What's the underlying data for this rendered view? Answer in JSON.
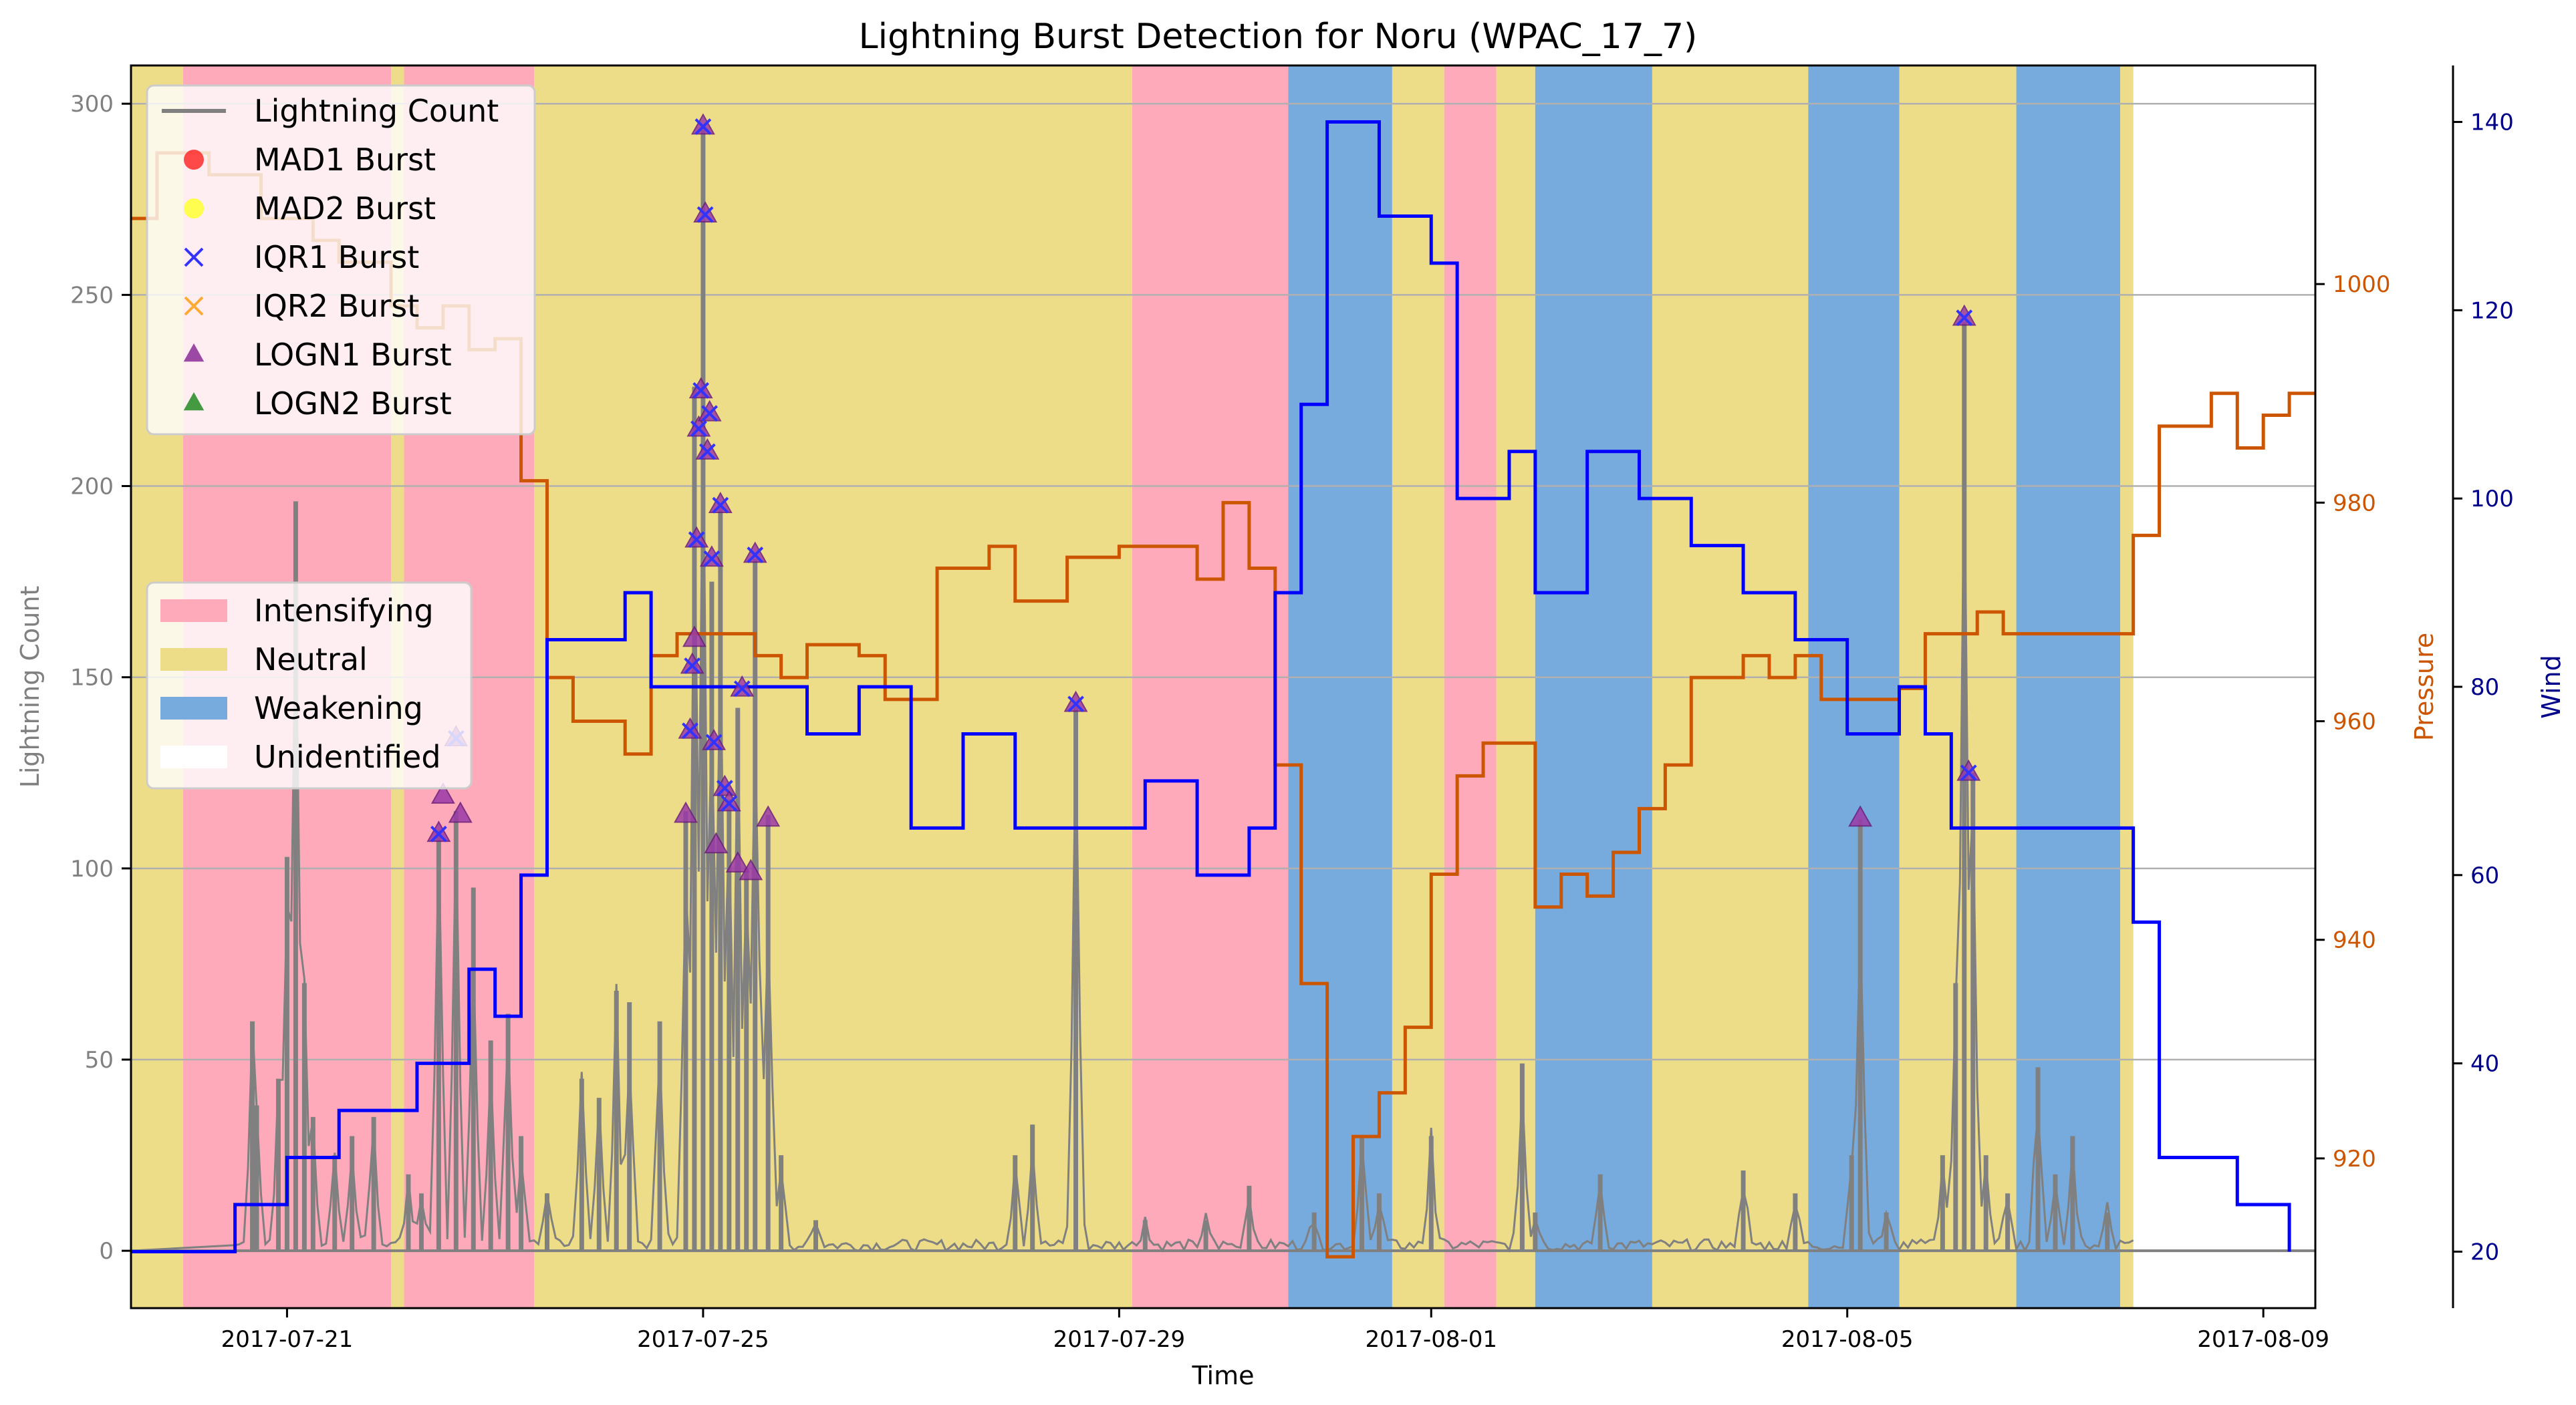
{
  "chart_data": {
    "type": "line",
    "title": "Lightning Burst Detection for Noru (WPAC_17_7)",
    "xlabel": "Time",
    "x_start": "2017-07-19T12:00",
    "x_end": "2017-08-09T12:00",
    "x_ticks": [
      "2017-07-21",
      "2017-07-25",
      "2017-07-29",
      "2017-08-01",
      "2017-08-05",
      "2017-08-09"
    ],
    "axes": {
      "lightning": {
        "label": "Lightning Count",
        "ylim": [
          -15,
          310
        ],
        "ticks": [
          0,
          50,
          100,
          150,
          200,
          250,
          300
        ],
        "color": "#808080"
      },
      "pressure": {
        "label": "Pressure",
        "ylim": [
          906.3,
          1020
        ],
        "ticks": [
          920,
          940,
          960,
          980,
          1000
        ],
        "color": "#cc5500"
      },
      "wind": {
        "label": "Wind",
        "ylim": [
          14,
          146
        ],
        "ticks": [
          20,
          40,
          60,
          80,
          100,
          120,
          140
        ],
        "color": "#00008b"
      }
    },
    "grid": true,
    "legend_main": {
      "placement": "upper-left",
      "entries": [
        {
          "label": "Lightning Count",
          "marker": "line",
          "color": "#808080"
        },
        {
          "label": "MAD1 Burst",
          "marker": "circle",
          "color": "#ff2a2a"
        },
        {
          "label": "MAD2 Burst",
          "marker": "circle",
          "color": "#ffff33"
        },
        {
          "label": "IQR1 Burst",
          "marker": "x",
          "color": "#3333ff"
        },
        {
          "label": "IQR2 Burst",
          "marker": "x",
          "color": "#ffaa33"
        },
        {
          "label": "LOGN1 Burst",
          "marker": "triangle",
          "color": "#8b2c98"
        },
        {
          "label": "LOGN2 Burst",
          "marker": "triangle",
          "color": "#228b22"
        }
      ]
    },
    "legend_phase": {
      "placement": "center-left",
      "entries": [
        {
          "label": "Intensifying",
          "color": "#ffaabb"
        },
        {
          "label": "Neutral",
          "color": "#eedd88"
        },
        {
          "label": "Weakening",
          "color": "#77aadd"
        },
        {
          "label": "Unidentified",
          "color": "#ffffff"
        }
      ]
    },
    "phases": [
      {
        "start": "2017-07-19T12:00",
        "end": "2017-07-20T00:00",
        "phase": "Neutral"
      },
      {
        "start": "2017-07-20T00:00",
        "end": "2017-07-22T00:00",
        "phase": "Intensifying"
      },
      {
        "start": "2017-07-22T00:00",
        "end": "2017-07-22T03:00",
        "phase": "Neutral"
      },
      {
        "start": "2017-07-22T03:00",
        "end": "2017-07-23T09:00",
        "phase": "Intensifying"
      },
      {
        "start": "2017-07-23T09:00",
        "end": "2017-07-29T03:00",
        "phase": "Neutral"
      },
      {
        "start": "2017-07-29T03:00",
        "end": "2017-07-30T15:00",
        "phase": "Intensifying"
      },
      {
        "start": "2017-07-30T15:00",
        "end": "2017-07-31T15:00",
        "phase": "Weakening"
      },
      {
        "start": "2017-07-31T15:00",
        "end": "2017-08-01T03:00",
        "phase": "Neutral"
      },
      {
        "start": "2017-08-01T03:00",
        "end": "2017-08-01T15:00",
        "phase": "Intensifying"
      },
      {
        "start": "2017-08-01T15:00",
        "end": "2017-08-02T00:00",
        "phase": "Neutral"
      },
      {
        "start": "2017-08-02T00:00",
        "end": "2017-08-03T03:00",
        "phase": "Weakening"
      },
      {
        "start": "2017-08-03T03:00",
        "end": "2017-08-04T15:00",
        "phase": "Neutral"
      },
      {
        "start": "2017-08-04T15:00",
        "end": "2017-08-05T12:00",
        "phase": "Weakening"
      },
      {
        "start": "2017-08-05T12:00",
        "end": "2017-08-06T15:00",
        "phase": "Neutral"
      },
      {
        "start": "2017-08-06T15:00",
        "end": "2017-08-07T15:00",
        "phase": "Weakening"
      },
      {
        "start": "2017-08-07T15:00",
        "end": "2017-08-07T18:00",
        "phase": "Neutral"
      }
    ],
    "lightning_peaks": [
      {
        "x": "2017-07-20T16:00",
        "y": 60
      },
      {
        "x": "2017-07-20T17:00",
        "y": 38
      },
      {
        "x": "2017-07-20T22:00",
        "y": 45
      },
      {
        "x": "2017-07-21T00:00",
        "y": 103
      },
      {
        "x": "2017-07-21T02:00",
        "y": 196
      },
      {
        "x": "2017-07-21T04:00",
        "y": 70
      },
      {
        "x": "2017-07-21T06:00",
        "y": 35
      },
      {
        "x": "2017-07-21T11:00",
        "y": 25
      },
      {
        "x": "2017-07-21T15:00",
        "y": 30
      },
      {
        "x": "2017-07-21T20:00",
        "y": 35
      },
      {
        "x": "2017-07-22T04:00",
        "y": 20
      },
      {
        "x": "2017-07-22T07:00",
        "y": 15
      },
      {
        "x": "2017-07-22T11:00",
        "y": 110
      },
      {
        "x": "2017-07-22T15:00",
        "y": 115
      },
      {
        "x": "2017-07-22T19:00",
        "y": 95
      },
      {
        "x": "2017-07-22T23:00",
        "y": 55
      },
      {
        "x": "2017-07-23T03:00",
        "y": 62
      },
      {
        "x": "2017-07-23T06:00",
        "y": 30
      },
      {
        "x": "2017-07-23T12:00",
        "y": 15
      },
      {
        "x": "2017-07-23T20:00",
        "y": 45
      },
      {
        "x": "2017-07-24T00:00",
        "y": 40
      },
      {
        "x": "2017-07-24T04:00",
        "y": 68
      },
      {
        "x": "2017-07-24T07:00",
        "y": 65
      },
      {
        "x": "2017-07-24T14:00",
        "y": 60
      },
      {
        "x": "2017-07-24T20:00",
        "y": 115
      },
      {
        "x": "2017-07-24T22:00",
        "y": 226
      },
      {
        "x": "2017-07-25T00:00",
        "y": 294
      },
      {
        "x": "2017-07-25T02:00",
        "y": 175
      },
      {
        "x": "2017-07-25T04:00",
        "y": 195
      },
      {
        "x": "2017-07-25T06:00",
        "y": 118
      },
      {
        "x": "2017-07-25T08:00",
        "y": 142
      },
      {
        "x": "2017-07-25T10:00",
        "y": 100
      },
      {
        "x": "2017-07-25T12:00",
        "y": 181
      },
      {
        "x": "2017-07-25T15:00",
        "y": 114
      },
      {
        "x": "2017-07-25T18:00",
        "y": 25
      },
      {
        "x": "2017-07-26T02:00",
        "y": 8
      },
      {
        "x": "2017-07-28T00:00",
        "y": 25
      },
      {
        "x": "2017-07-28T04:00",
        "y": 33
      },
      {
        "x": "2017-07-28T14:00",
        "y": 143
      },
      {
        "x": "2017-07-29T06:00",
        "y": 8
      },
      {
        "x": "2017-07-29T20:00",
        "y": 8
      },
      {
        "x": "2017-07-30T06:00",
        "y": 17
      },
      {
        "x": "2017-07-30T21:00",
        "y": 10
      },
      {
        "x": "2017-07-31T08:00",
        "y": 30
      },
      {
        "x": "2017-07-31T12:00",
        "y": 15
      },
      {
        "x": "2017-08-01T00:00",
        "y": 30
      },
      {
        "x": "2017-08-01T21:00",
        "y": 49
      },
      {
        "x": "2017-08-02T00:00",
        "y": 10
      },
      {
        "x": "2017-08-02T15:00",
        "y": 20
      },
      {
        "x": "2017-08-04T00:00",
        "y": 21
      },
      {
        "x": "2017-08-04T12:00",
        "y": 15
      },
      {
        "x": "2017-08-05T01:00",
        "y": 25
      },
      {
        "x": "2017-08-05T03:00",
        "y": 113
      },
      {
        "x": "2017-08-05T09:00",
        "y": 10
      },
      {
        "x": "2017-08-05T22:00",
        "y": 25
      },
      {
        "x": "2017-08-06T01:00",
        "y": 70
      },
      {
        "x": "2017-08-06T03:00",
        "y": 243
      },
      {
        "x": "2017-08-06T05:00",
        "y": 125
      },
      {
        "x": "2017-08-06T08:00",
        "y": 25
      },
      {
        "x": "2017-08-06T13:00",
        "y": 15
      },
      {
        "x": "2017-08-06T20:00",
        "y": 48
      },
      {
        "x": "2017-08-07T00:00",
        "y": 20
      },
      {
        "x": "2017-08-07T04:00",
        "y": 30
      },
      {
        "x": "2017-08-07T12:00",
        "y": 10
      }
    ],
    "bursts": [
      {
        "x": "2017-07-22T11:00",
        "y": 109,
        "types": [
          "LOGN1",
          "IQR1"
        ]
      },
      {
        "x": "2017-07-22T12:00",
        "y": 119,
        "types": [
          "LOGN1"
        ]
      },
      {
        "x": "2017-07-22T15:00",
        "y": 134,
        "types": [
          "LOGN1",
          "IQR1"
        ]
      },
      {
        "x": "2017-07-22T16:00",
        "y": 114,
        "types": [
          "LOGN1"
        ]
      },
      {
        "x": "2017-07-24T20:00",
        "y": 114,
        "types": [
          "LOGN1"
        ]
      },
      {
        "x": "2017-07-24T21:00",
        "y": 136,
        "types": [
          "LOGN1",
          "IQR1"
        ]
      },
      {
        "x": "2017-07-24T21:30",
        "y": 153,
        "types": [
          "LOGN1",
          "IQR1"
        ]
      },
      {
        "x": "2017-07-24T22:00",
        "y": 160,
        "types": [
          "LOGN1"
        ]
      },
      {
        "x": "2017-07-24T22:30",
        "y": 186,
        "types": [
          "LOGN1",
          "IQR1"
        ]
      },
      {
        "x": "2017-07-24T23:00",
        "y": 215,
        "types": [
          "LOGN1",
          "IQR1"
        ]
      },
      {
        "x": "2017-07-24T23:30",
        "y": 225,
        "types": [
          "LOGN1",
          "IQR1"
        ]
      },
      {
        "x": "2017-07-25T00:00",
        "y": 294,
        "types": [
          "LOGN1",
          "IQR1"
        ]
      },
      {
        "x": "2017-07-25T00:30",
        "y": 271,
        "types": [
          "LOGN1",
          "IQR1"
        ]
      },
      {
        "x": "2017-07-25T01:00",
        "y": 209,
        "types": [
          "LOGN1",
          "IQR1"
        ]
      },
      {
        "x": "2017-07-25T01:30",
        "y": 219,
        "types": [
          "LOGN1",
          "IQR1"
        ]
      },
      {
        "x": "2017-07-25T02:00",
        "y": 181,
        "types": [
          "LOGN1",
          "IQR1"
        ]
      },
      {
        "x": "2017-07-25T02:30",
        "y": 133,
        "types": [
          "LOGN1",
          "IQR1"
        ]
      },
      {
        "x": "2017-07-25T03:00",
        "y": 106,
        "types": [
          "LOGN1"
        ]
      },
      {
        "x": "2017-07-25T04:00",
        "y": 195,
        "types": [
          "LOGN1",
          "IQR1"
        ]
      },
      {
        "x": "2017-07-25T05:00",
        "y": 121,
        "types": [
          "LOGN1",
          "IQR1"
        ]
      },
      {
        "x": "2017-07-25T06:00",
        "y": 117,
        "types": [
          "LOGN1",
          "IQR1"
        ]
      },
      {
        "x": "2017-07-25T08:00",
        "y": 101,
        "types": [
          "LOGN1"
        ]
      },
      {
        "x": "2017-07-25T09:00",
        "y": 147,
        "types": [
          "LOGN1",
          "IQR1"
        ]
      },
      {
        "x": "2017-07-25T11:00",
        "y": 99,
        "types": [
          "LOGN1"
        ]
      },
      {
        "x": "2017-07-25T12:00",
        "y": 182,
        "types": [
          "LOGN1",
          "IQR1"
        ]
      },
      {
        "x": "2017-07-25T15:00",
        "y": 113,
        "types": [
          "LOGN1"
        ]
      },
      {
        "x": "2017-07-28T14:00",
        "y": 143,
        "types": [
          "LOGN1",
          "IQR1"
        ]
      },
      {
        "x": "2017-08-05T03:00",
        "y": 113,
        "types": [
          "LOGN1"
        ]
      },
      {
        "x": "2017-08-06T03:00",
        "y": 244,
        "types": [
          "LOGN1",
          "IQR1"
        ]
      },
      {
        "x": "2017-08-06T04:00",
        "y": 125,
        "types": [
          "LOGN1",
          "IQR1"
        ]
      }
    ],
    "pressure_series": {
      "name": "Pressure",
      "points": [
        [
          "2017-07-19T12:00",
          1006
        ],
        [
          "2017-07-19T18:00",
          1012
        ],
        [
          "2017-07-20T06:00",
          1010
        ],
        [
          "2017-07-20T18:00",
          1006
        ],
        [
          "2017-07-21T06:00",
          1004
        ],
        [
          "2017-07-21T12:00",
          1002
        ],
        [
          "2017-07-22T00:00",
          998
        ],
        [
          "2017-07-22T06:00",
          996
        ],
        [
          "2017-07-22T12:00",
          998
        ],
        [
          "2017-07-22T18:00",
          994
        ],
        [
          "2017-07-23T00:00",
          995
        ],
        [
          "2017-07-23T06:00",
          982
        ],
        [
          "2017-07-23T12:00",
          964
        ],
        [
          "2017-07-23T18:00",
          960
        ],
        [
          "2017-07-24T06:00",
          957
        ],
        [
          "2017-07-24T12:00",
          966
        ],
        [
          "2017-07-24T18:00",
          968
        ],
        [
          "2017-07-25T12:00",
          966
        ],
        [
          "2017-07-25T18:00",
          964
        ],
        [
          "2017-07-26T00:00",
          967
        ],
        [
          "2017-07-26T12:00",
          966
        ],
        [
          "2017-07-26T18:00",
          962
        ],
        [
          "2017-07-27T06:00",
          974
        ],
        [
          "2017-07-27T18:00",
          976
        ],
        [
          "2017-07-28T00:00",
          971
        ],
        [
          "2017-07-28T12:00",
          975
        ],
        [
          "2017-07-29T00:00",
          976
        ],
        [
          "2017-07-29T12:00",
          976
        ],
        [
          "2017-07-29T18:00",
          973
        ],
        [
          "2017-07-30T00:00",
          980
        ],
        [
          "2017-07-30T06:00",
          974
        ],
        [
          "2017-07-30T12:00",
          956
        ],
        [
          "2017-07-30T18:00",
          936
        ],
        [
          "2017-07-31T00:00",
          911
        ],
        [
          "2017-07-31T06:00",
          922
        ],
        [
          "2017-07-31T12:00",
          926
        ],
        [
          "2017-07-31T18:00",
          932
        ],
        [
          "2017-08-01T00:00",
          946
        ],
        [
          "2017-08-01T06:00",
          955
        ],
        [
          "2017-08-01T12:00",
          958
        ],
        [
          "2017-08-02T00:00",
          943
        ],
        [
          "2017-08-02T06:00",
          946
        ],
        [
          "2017-08-02T12:00",
          944
        ],
        [
          "2017-08-02T18:00",
          948
        ],
        [
          "2017-08-03T00:00",
          952
        ],
        [
          "2017-08-03T06:00",
          956
        ],
        [
          "2017-08-03T12:00",
          964
        ],
        [
          "2017-08-04T00:00",
          966
        ],
        [
          "2017-08-04T06:00",
          964
        ],
        [
          "2017-08-04T12:00",
          966
        ],
        [
          "2017-08-04T18:00",
          962
        ],
        [
          "2017-08-05T12:00",
          963
        ],
        [
          "2017-08-05T18:00",
          968
        ],
        [
          "2017-08-06T06:00",
          970
        ],
        [
          "2017-08-06T12:00",
          968
        ],
        [
          "2017-08-07T18:00",
          977
        ],
        [
          "2017-08-08T00:00",
          987
        ],
        [
          "2017-08-08T12:00",
          990
        ],
        [
          "2017-08-08T18:00",
          985
        ],
        [
          "2017-08-09T00:00",
          988
        ],
        [
          "2017-08-09T06:00",
          990
        ],
        [
          "2017-08-09T12:00",
          990
        ]
      ]
    },
    "wind_series": {
      "name": "Wind",
      "points": [
        [
          "2017-07-19T12:00",
          20
        ],
        [
          "2017-07-20T12:00",
          25
        ],
        [
          "2017-07-21T00:00",
          30
        ],
        [
          "2017-07-21T12:00",
          35
        ],
        [
          "2017-07-22T06:00",
          40
        ],
        [
          "2017-07-22T18:00",
          50
        ],
        [
          "2017-07-23T00:00",
          45
        ],
        [
          "2017-07-23T06:00",
          60
        ],
        [
          "2017-07-23T12:00",
          85
        ],
        [
          "2017-07-24T06:00",
          90
        ],
        [
          "2017-07-24T12:00",
          80
        ],
        [
          "2017-07-25T12:00",
          80
        ],
        [
          "2017-07-26T00:00",
          75
        ],
        [
          "2017-07-26T12:00",
          80
        ],
        [
          "2017-07-27T00:00",
          65
        ],
        [
          "2017-07-27T12:00",
          75
        ],
        [
          "2017-07-28T00:00",
          65
        ],
        [
          "2017-07-29T06:00",
          70
        ],
        [
          "2017-07-29T18:00",
          60
        ],
        [
          "2017-07-30T06:00",
          65
        ],
        [
          "2017-07-30T12:00",
          90
        ],
        [
          "2017-07-30T18:00",
          110
        ],
        [
          "2017-07-31T00:00",
          140
        ],
        [
          "2017-07-31T12:00",
          130
        ],
        [
          "2017-08-01T00:00",
          125
        ],
        [
          "2017-08-01T06:00",
          100
        ],
        [
          "2017-08-01T18:00",
          105
        ],
        [
          "2017-08-02T00:00",
          90
        ],
        [
          "2017-08-02T12:00",
          105
        ],
        [
          "2017-08-03T00:00",
          100
        ],
        [
          "2017-08-03T12:00",
          95
        ],
        [
          "2017-08-04T00:00",
          90
        ],
        [
          "2017-08-04T12:00",
          85
        ],
        [
          "2017-08-05T00:00",
          75
        ],
        [
          "2017-08-05T12:00",
          80
        ],
        [
          "2017-08-05T18:00",
          75
        ],
        [
          "2017-08-06T00:00",
          65
        ],
        [
          "2017-08-07T18:00",
          55
        ],
        [
          "2017-08-08T00:00",
          30
        ],
        [
          "2017-08-08T18:00",
          25
        ],
        [
          "2017-08-09T06:00",
          20
        ]
      ]
    }
  }
}
